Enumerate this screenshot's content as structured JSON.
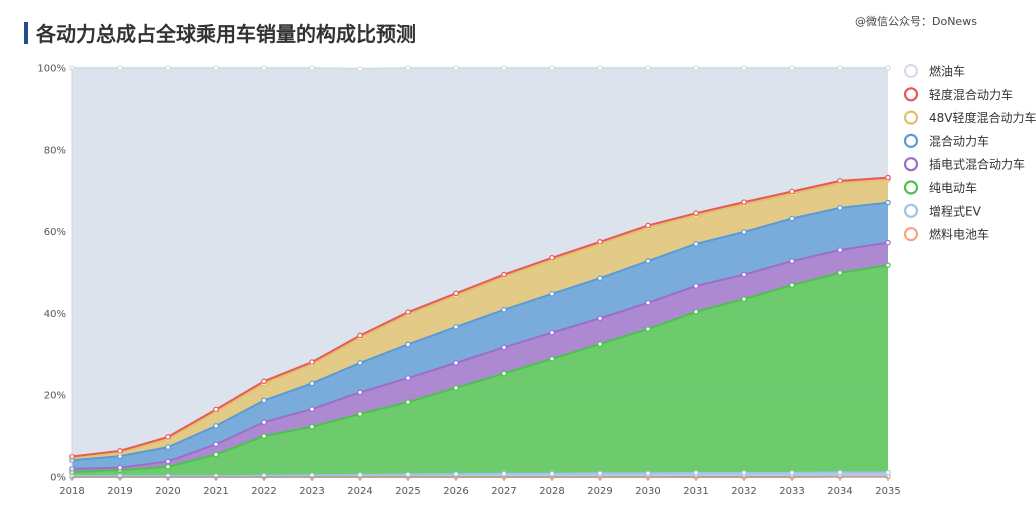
{
  "title": "各动力总成占全球乘用车销量的构成比预测",
  "watermark": "@微信公众号：DoNews",
  "chart_data": {
    "type": "area",
    "stacked": true,
    "grid": true,
    "legend_position": "right",
    "x": [
      "2018",
      "2019",
      "2020",
      "2021",
      "2022",
      "2023",
      "2024",
      "2025",
      "2026",
      "2027",
      "2028",
      "2029",
      "2030",
      "2031",
      "2032",
      "2033",
      "2034",
      "2035"
    ],
    "y_ticks": [
      "0%",
      "20%",
      "40%",
      "60%",
      "80%",
      "100%"
    ],
    "ylim": [
      0,
      100
    ],
    "series": [
      {
        "name": "燃料电池车",
        "color": "#f4a582",
        "values": [
          0,
          0,
          0,
          0,
          0,
          0,
          0,
          0,
          0,
          0,
          0,
          0,
          0,
          0,
          0,
          0,
          0.1,
          0.1
        ]
      },
      {
        "name": "增程式EV",
        "color": "#9ec5e8",
        "values": [
          0.2,
          0.2,
          0.2,
          0.2,
          0.3,
          0.4,
          0.5,
          0.6,
          0.7,
          0.8,
          0.8,
          0.9,
          0.9,
          1.0,
          1.0,
          1.0,
          1.0,
          1.0
        ]
      },
      {
        "name": "纯电动车",
        "color": "#4cc24c",
        "values": [
          1.0,
          1.5,
          2.3,
          5.3,
          9.7,
          11.9,
          14.9,
          17.7,
          21.1,
          24.5,
          28.1,
          31.6,
          35.3,
          39.4,
          42.5,
          45.9,
          48.8,
          50.7
        ]
      },
      {
        "name": "插电式混合动力车",
        "color": "#9b6fc8",
        "values": [
          0.8,
          0.6,
          1.3,
          2.5,
          3.4,
          4.3,
          5.3,
          5.9,
          6.1,
          6.4,
          6.4,
          6.3,
          6.4,
          6.3,
          6.0,
          5.9,
          5.6,
          5.5
        ]
      },
      {
        "name": "混合动力车",
        "color": "#5b9bd5",
        "values": [
          2.1,
          2.8,
          3.5,
          4.5,
          5.3,
          6.3,
          7.2,
          8.2,
          8.8,
          9.2,
          9.5,
          9.8,
          10.2,
          10.3,
          10.4,
          10.4,
          10.3,
          9.8
        ]
      },
      {
        "name": "48V轻度混合动力车",
        "color": "#e0c06a",
        "values": [
          0.6,
          0.8,
          2.0,
          3.5,
          4.2,
          4.7,
          6.2,
          7.4,
          7.7,
          8.1,
          8.3,
          8.4,
          8.2,
          7.0,
          6.8,
          6.1,
          6.1,
          5.6
        ]
      },
      {
        "name": "轻度混合动力车",
        "color": "#e85a5a",
        "values": [
          0.3,
          0.5,
          0.5,
          0.5,
          0.5,
          0.5,
          0.5,
          0.5,
          0.5,
          0.5,
          0.5,
          0.5,
          0.5,
          0.5,
          0.5,
          0.5,
          0.5,
          0.5
        ]
      },
      {
        "name": "燃油车",
        "color": "#d5dde8",
        "values": [
          95.0,
          93.6,
          90.2,
          83.5,
          76.6,
          71.9,
          65.2,
          59.7,
          55.1,
          50.5,
          46.4,
          42.5,
          38.5,
          35.5,
          32.8,
          30.2,
          27.8,
          26.8
        ]
      }
    ]
  }
}
